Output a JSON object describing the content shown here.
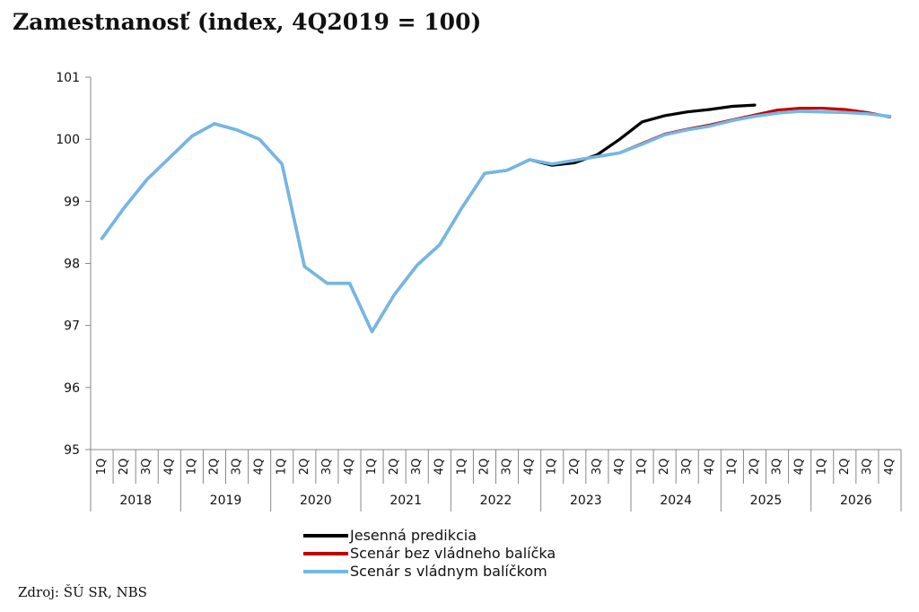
{
  "title": "Zamestnanosť (index, 4Q2019 = 100)",
  "source": "Zdroj: ŠÚ SR, NBS",
  "chart_data": {
    "type": "line",
    "title": "Zamestnanosť (index, 4Q2019 = 100)",
    "ylim": [
      95,
      101
    ],
    "yticks": [
      95,
      96,
      97,
      98,
      99,
      100,
      101
    ],
    "quarters": [
      "1Q",
      "2Q",
      "3Q",
      "4Q"
    ],
    "years": [
      "2018",
      "2019",
      "2020",
      "2021",
      "2022",
      "2023",
      "2024",
      "2025",
      "2026"
    ],
    "grid": false,
    "legend_position": "bottom",
    "series": [
      {
        "name": "Jesenná predikcia",
        "color": "#000000",
        "start_index": 0,
        "values": [
          98.4,
          98.9,
          99.35,
          99.7,
          100.05,
          100.25,
          100.15,
          100.0,
          99.6,
          97.95,
          97.68,
          97.68,
          96.9,
          97.5,
          97.97,
          98.3,
          98.9,
          99.45,
          99.5,
          99.67,
          99.58,
          99.62,
          99.75,
          100.0,
          100.28,
          100.38,
          100.44,
          100.48,
          100.53,
          100.55
        ]
      },
      {
        "name": "Scenár bez vládneho balíčka",
        "color": "#c00000",
        "start_index": 0,
        "values": [
          98.4,
          98.9,
          99.35,
          99.7,
          100.05,
          100.25,
          100.15,
          100.0,
          99.6,
          97.95,
          97.68,
          97.68,
          96.9,
          97.5,
          97.97,
          98.3,
          98.9,
          99.45,
          99.5,
          99.67,
          99.6,
          99.66,
          99.72,
          99.78,
          99.93,
          100.08,
          100.16,
          100.23,
          100.31,
          100.39,
          100.47,
          100.5,
          100.5,
          100.48,
          100.43,
          100.36
        ]
      },
      {
        "name": "Scenár s vládnym balíčkom",
        "color": "#72b8e6",
        "start_index": 0,
        "values": [
          98.4,
          98.9,
          99.35,
          99.7,
          100.05,
          100.25,
          100.15,
          100.0,
          99.6,
          97.95,
          97.68,
          97.68,
          96.9,
          97.5,
          97.97,
          98.3,
          98.9,
          99.45,
          99.5,
          99.67,
          99.6,
          99.66,
          99.72,
          99.78,
          99.92,
          100.07,
          100.15,
          100.21,
          100.3,
          100.37,
          100.42,
          100.45,
          100.44,
          100.43,
          100.41,
          100.37
        ]
      }
    ]
  }
}
